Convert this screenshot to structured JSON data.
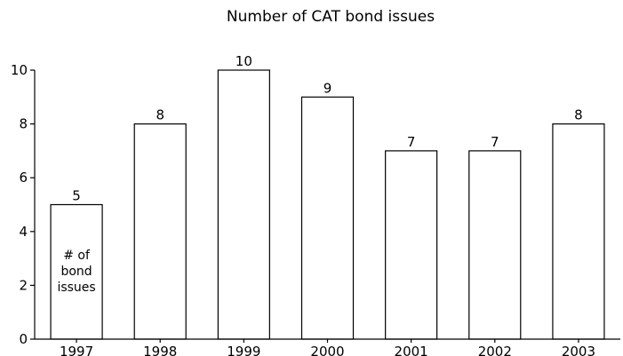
{
  "chart_data": {
    "type": "bar",
    "title": "Number of CAT bond issues",
    "categories": [
      "1997",
      "1998",
      "1999",
      "2000",
      "2001",
      "2002",
      "2003"
    ],
    "values": [
      5,
      8,
      10,
      9,
      7,
      7,
      8
    ],
    "data_labels": [
      "5",
      "8",
      "10",
      "9",
      "7",
      "7",
      "8"
    ],
    "yticks": [
      0,
      2,
      4,
      6,
      8,
      10
    ],
    "ylim": [
      0,
      10
    ],
    "xlabel": "",
    "ylabel": "",
    "grid": false,
    "in_bar_annotation": {
      "category": "1997",
      "lines": [
        "# of",
        "bond",
        "issues"
      ]
    }
  }
}
